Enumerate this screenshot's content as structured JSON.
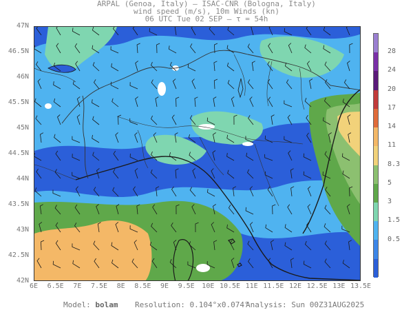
{
  "header": {
    "line1": "ARPAL (Genoa, Italy)  —  ISAC-CNR (Bologna, Italy)",
    "line2": "wind speed (m/s), 10m Winds (kn)",
    "line3": "06 UTC Tue 02 SEP  —  τ = 54h"
  },
  "map": {
    "lon_range": [
      6,
      13.5
    ],
    "lat_range": [
      42,
      47
    ],
    "lat_labels": [
      "47N",
      "46.5N",
      "46N",
      "45.5N",
      "45N",
      "44.5N",
      "44N",
      "43.5N",
      "43N",
      "42.5N",
      "42N"
    ],
    "lon_labels": [
      "6E",
      "6.5E",
      "7E",
      "7.5E",
      "8E",
      "8.5E",
      "9E",
      "9.5E",
      "10E",
      "10.5E",
      "11E",
      "11.5E",
      "12E",
      "12.5E",
      "13E",
      "13.5E"
    ],
    "colors": {
      "lt0_5": "#2b5fd9",
      "c0_5_1_5": "#3d86e8",
      "c1_5_3": "#4fb3f0",
      "c3_5": "#7fd6b0",
      "c5_8_3": "#5fa84a",
      "c8_3_11": "#8cc070",
      "c11_14": "#f2d27a",
      "c14_17": "#f4b867",
      "gt20": "#ffffff",
      "coast": "#1a1a1a",
      "border": "#333333"
    }
  },
  "colorbar": {
    "labels": [
      "28",
      "24",
      "20",
      "17",
      "14",
      "11",
      "8.3",
      "5",
      "3",
      "1.5",
      "0.5"
    ],
    "colors": [
      "#9a7fd1",
      "#7a2fa8",
      "#5b1a7a",
      "#c23b3b",
      "#e06b3a",
      "#f4b867",
      "#f2d27a",
      "#8cc070",
      "#5fa84a",
      "#7fd6b0",
      "#4fb3f0",
      "#3d86e8",
      "#2b5fd9"
    ]
  },
  "footer": {
    "model_label": "Model:",
    "model_value": "bolam",
    "resolution_label": "Resolution:",
    "resolution_value": "0.104°x0.074°",
    "analysis_label": "Analysis:",
    "analysis_value": "Sun 00Z31AUG2025"
  }
}
